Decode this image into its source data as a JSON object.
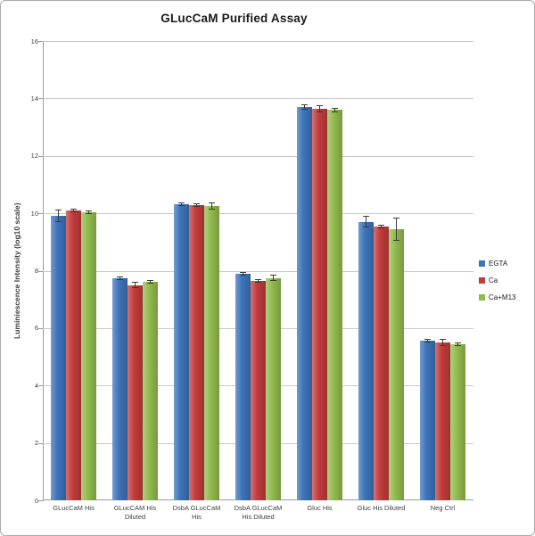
{
  "title": "GLucCaM Purified Assay",
  "chart_data": {
    "type": "bar",
    "title": "GLucCaM Purified Assay",
    "xlabel": "",
    "ylabel": "Luminiescence Intensity (log10  scale)",
    "ylim": [
      0,
      16
    ],
    "yticks": [
      0,
      2,
      4,
      6,
      8,
      10,
      12,
      14,
      16
    ],
    "grid": true,
    "legend_position": "right",
    "categories": [
      "GLucCaM His",
      "GLucCAM His Diluted",
      "DsbA GLucCaM His",
      "DsbA GLucCaM His Diluted",
      "Gluc His",
      "Gluc His Diluted",
      "Neg Ctrl"
    ],
    "category_lines": [
      [
        "GLucCaM His"
      ],
      [
        "GLucCAM His",
        "Diluted"
      ],
      [
        "DsbA GLucCaM",
        "His"
      ],
      [
        "DsbA GLucCaM",
        "His Diluted"
      ],
      [
        "Gluc His"
      ],
      [
        "Gluc His Diluted"
      ],
      [
        "Neg Ctrl"
      ]
    ],
    "series": [
      {
        "name": "EGTA",
        "color": "#3d74ba",
        "values": [
          9.9,
          7.75,
          10.3,
          7.9,
          13.7,
          9.7,
          5.55
        ],
        "errors": [
          0.22,
          0.05,
          0.05,
          0.05,
          0.08,
          0.2,
          0.04
        ]
      },
      {
        "name": "Ca",
        "color": "#c23c3c",
        "values": [
          10.1,
          7.5,
          10.28,
          7.65,
          13.65,
          9.55,
          5.5
        ],
        "errors": [
          0.06,
          0.1,
          0.05,
          0.06,
          0.12,
          0.05,
          0.12
        ]
      },
      {
        "name": "Ca+M13",
        "color": "#92bb4e",
        "values": [
          10.05,
          7.6,
          10.25,
          7.75,
          13.6,
          9.45,
          5.45
        ],
        "errors": [
          0.05,
          0.06,
          0.12,
          0.1,
          0.08,
          0.4,
          0.04
        ]
      }
    ],
    "colors": {
      "grid": "#c9c9c9",
      "axis": "#9b9b9b",
      "error_bar": "#3a3a3a",
      "text": "#3f3f3f"
    }
  }
}
